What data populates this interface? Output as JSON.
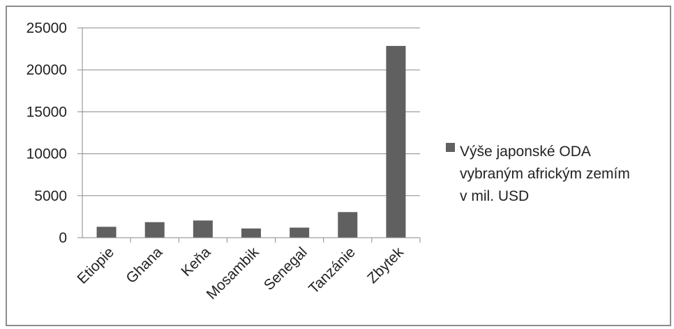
{
  "chart_data": {
    "type": "bar",
    "categories": [
      "Etiopie",
      "Ghana",
      "Keňa",
      "Mosambik",
      "Senegal",
      "Tanzánie",
      "Zbytek"
    ],
    "series": [
      {
        "name": "Výše japonské ODA vybraným africkým zemím v mil. USD",
        "values": [
          1300,
          1850,
          2050,
          1100,
          1200,
          3050,
          22850
        ],
        "color": "#606060"
      }
    ],
    "y_ticks": [
      "0",
      "5000",
      "10000",
      "15000",
      "20000",
      "25000"
    ],
    "ylim": [
      0,
      25000
    ],
    "grid": true,
    "legend": {
      "position": "right",
      "lines": [
        "Výše japonské ODA",
        "vybraným africkým zemím",
        "v mil. USD"
      ]
    }
  }
}
